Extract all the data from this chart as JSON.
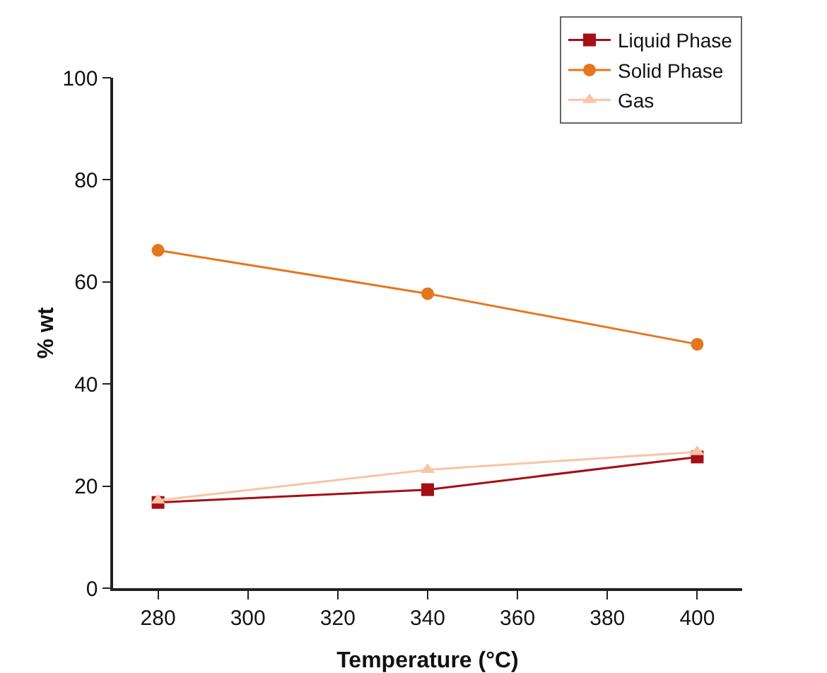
{
  "chart_data": {
    "type": "line",
    "xlabel": "Temperature (°C)",
    "ylabel": "% wt",
    "x": [
      280,
      340,
      400
    ],
    "series": [
      {
        "name": "Liquid Phase",
        "color": "#a50f15",
        "marker": "square",
        "values": [
          16.8,
          19.3,
          25.7
        ]
      },
      {
        "name": "Solid Phase",
        "color": "#e6761e",
        "marker": "circle",
        "values": [
          66.2,
          57.7,
          47.8
        ]
      },
      {
        "name": "Gas",
        "color": "#f9c4a6",
        "marker": "triangle",
        "values": [
          17.2,
          23.2,
          26.7
        ]
      }
    ],
    "xlim": [
      270,
      410
    ],
    "xticks": [
      280,
      300,
      320,
      340,
      360,
      380,
      400
    ],
    "ylim": [
      0,
      100
    ],
    "yticks": [
      0,
      20,
      40,
      60,
      80,
      100
    ],
    "grid": false,
    "legend": "top right",
    "line_style": "solid"
  }
}
